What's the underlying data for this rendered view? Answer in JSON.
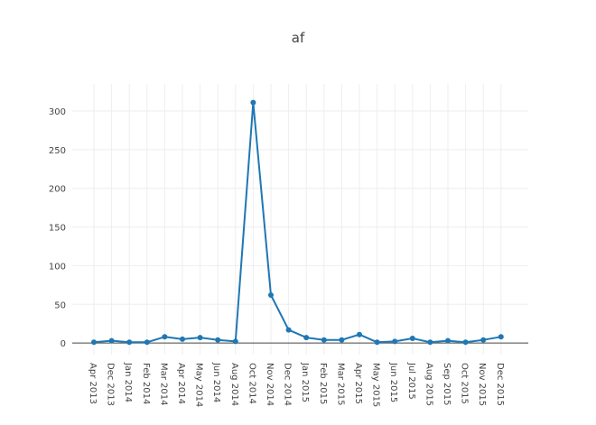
{
  "chart_data": {
    "type": "line",
    "title": "af",
    "xlabel": "",
    "ylabel": "",
    "ylim": [
      -15,
      335
    ],
    "yticks": [
      0,
      50,
      100,
      150,
      200,
      250,
      300
    ],
    "grid": true,
    "legend": "none",
    "color": "#1f77b4",
    "categories": [
      "Apr 2013",
      "Dec 2013",
      "Jan 2014",
      "Feb 2014",
      "Mar 2014",
      "Apr 2014",
      "May 2014",
      "Jun 2014",
      "Aug 2014",
      "Oct 2014",
      "Nov 2014",
      "Dec 2014",
      "Jan 2015",
      "Feb 2015",
      "Mar 2015",
      "Apr 2015",
      "May 2015",
      "Jun 2015",
      "Jul 2015",
      "Aug 2015",
      "Sep 2015",
      "Oct 2015",
      "Nov 2015",
      "Dec 2015"
    ],
    "values": [
      1,
      3,
      1,
      1,
      8,
      5,
      7,
      4,
      2,
      311,
      62,
      17,
      7,
      4,
      4,
      11,
      1,
      2,
      6,
      1,
      3,
      1,
      4,
      8
    ]
  }
}
